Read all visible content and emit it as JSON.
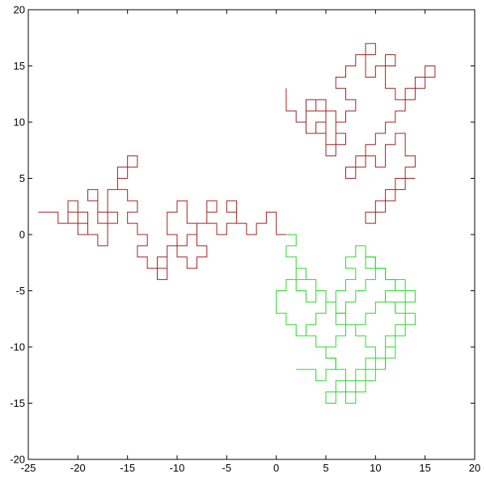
{
  "chart_data": {
    "type": "line",
    "title": "",
    "xlabel": "",
    "ylabel": "",
    "xlim": [
      -25,
      20
    ],
    "ylim": [
      -20,
      20
    ],
    "grid": false,
    "x_ticks": [
      -25,
      -20,
      -15,
      -10,
      -5,
      0,
      5,
      10,
      15,
      20
    ],
    "y_ticks": [
      -20,
      -15,
      -10,
      -5,
      0,
      5,
      10,
      15,
      20
    ],
    "x_tick_labels": [
      "-25",
      "-20",
      "-15",
      "-10",
      "-5",
      "0",
      "5",
      "10",
      "15",
      "20"
    ],
    "y_tick_labels": [
      "-20",
      "-15",
      "-10",
      "-5",
      "0",
      "5",
      "10",
      "15",
      "20"
    ],
    "series": [
      {
        "color": "#a31f1f",
        "x": [
          -24,
          -22,
          -22,
          -21,
          -21,
          -20,
          -20,
          -21,
          -21,
          -20,
          -20,
          -19,
          -19,
          -20,
          -20,
          -19,
          -19,
          -18,
          -18,
          -17,
          -17,
          -18,
          -18,
          -19,
          -19,
          -18,
          -18,
          -17,
          -17,
          -16,
          -16,
          -17,
          -17,
          -16,
          -16,
          -15,
          -15,
          -14,
          -14,
          -15,
          -15,
          -16,
          -16,
          -15,
          -15,
          -14,
          -14,
          -15,
          -15,
          -14,
          -14,
          -13,
          -13,
          -14,
          -14,
          -13,
          -13,
          -12,
          -12,
          -11,
          -11,
          -12,
          -12,
          -11,
          -11,
          -10,
          -10,
          -11,
          -11,
          -10,
          -10,
          -9,
          -9,
          -8,
          -8,
          -9,
          -9,
          -10,
          -10,
          -9,
          -9,
          -8,
          -8,
          -7,
          -7,
          -8,
          -8,
          -7,
          -7,
          -6,
          -6,
          -7,
          -7,
          -6,
          -6,
          -5,
          -5,
          -4,
          -4,
          -5,
          -5,
          -4,
          -4,
          -3,
          -3,
          -2,
          -2,
          -1,
          -1,
          0,
          0,
          1
        ],
        "y": [
          2,
          2,
          1,
          1,
          2,
          2,
          3,
          3,
          1,
          1,
          0,
          0,
          2,
          2,
          1,
          1,
          0,
          0,
          -1,
          -1,
          1,
          1,
          3,
          3,
          4,
          4,
          2,
          2,
          1,
          1,
          2,
          2,
          4,
          4,
          5,
          5,
          6,
          6,
          7,
          7,
          6,
          6,
          4,
          4,
          3,
          3,
          2,
          2,
          1,
          1,
          0,
          0,
          -1,
          -1,
          -2,
          -2,
          -3,
          -3,
          -2,
          -2,
          -4,
          -4,
          -3,
          -3,
          -1,
          -1,
          0,
          0,
          2,
          2,
          3,
          3,
          1,
          1,
          0,
          0,
          -1,
          -1,
          -2,
          -2,
          -3,
          -3,
          -2,
          -2,
          -1,
          -1,
          1,
          1,
          2,
          2,
          3,
          3,
          1,
          1,
          0,
          0,
          1,
          1,
          2,
          2,
          3,
          3,
          1,
          1,
          0,
          0,
          1,
          1,
          2,
          2,
          0,
          0
        ]
      },
      {
        "color": "#a31f1f",
        "x": [
          1,
          1,
          2,
          2,
          3,
          3,
          4,
          4,
          3,
          3,
          4,
          4,
          5,
          5,
          4,
          4,
          5,
          5,
          6,
          6,
          5,
          5,
          4,
          4,
          5,
          5,
          6,
          6,
          7,
          7,
          6,
          6,
          7,
          7,
          8,
          8,
          7,
          7,
          6,
          6,
          7,
          7,
          8,
          8,
          9,
          9,
          10,
          10,
          9,
          9,
          10,
          10,
          11,
          11,
          12,
          12,
          11,
          11,
          12,
          12,
          13,
          13,
          14,
          14,
          15,
          15,
          16,
          16,
          15,
          15,
          14,
          14,
          13,
          13,
          12,
          12,
          11,
          11,
          10,
          10,
          9,
          9,
          8,
          8,
          7,
          7,
          8,
          8,
          9,
          9,
          10,
          10,
          11,
          11,
          12,
          12,
          13,
          13,
          14,
          14,
          13,
          13,
          12,
          12,
          11,
          11,
          10,
          10,
          9,
          9,
          10,
          10,
          11,
          11,
          12,
          12,
          13,
          13,
          14
        ],
        "y": [
          13,
          11,
          11,
          10,
          10,
          11,
          11,
          12,
          12,
          9,
          9,
          10,
          10,
          11,
          11,
          12,
          12,
          11,
          11,
          8,
          8,
          9,
          9,
          10,
          10,
          7,
          7,
          8,
          8,
          9,
          9,
          10,
          10,
          11,
          11,
          12,
          12,
          13,
          13,
          14,
          14,
          15,
          15,
          16,
          16,
          17,
          17,
          16,
          16,
          14,
          14,
          15,
          15,
          16,
          16,
          15,
          15,
          13,
          13,
          12,
          12,
          13,
          13,
          14,
          14,
          15,
          15,
          14,
          14,
          13,
          13,
          12,
          12,
          11,
          11,
          10,
          10,
          9,
          9,
          8,
          8,
          7,
          7,
          6,
          6,
          5,
          5,
          6,
          6,
          7,
          7,
          6,
          6,
          8,
          8,
          9,
          9,
          7,
          7,
          6,
          6,
          5,
          5,
          4,
          4,
          3,
          3,
          2,
          2,
          1,
          1,
          2,
          2,
          3,
          3,
          4,
          4,
          5,
          5
        ]
      },
      {
        "color": "#22dd22",
        "x": [
          1,
          2,
          2,
          1,
          1,
          2,
          2,
          3,
          3,
          2,
          2,
          3,
          3,
          4,
          4,
          5,
          5,
          4,
          4,
          3,
          3,
          4,
          4,
          5,
          5,
          6,
          6,
          7,
          7,
          6,
          6,
          5,
          5,
          6,
          6,
          7,
          7,
          8,
          8,
          9,
          9,
          10,
          10,
          9,
          9,
          8,
          8,
          9,
          9,
          10,
          10,
          11,
          11,
          12,
          12,
          13,
          13,
          14,
          14,
          13,
          13,
          14,
          14,
          13,
          13,
          12,
          12,
          11,
          11,
          10,
          10,
          9,
          9,
          8,
          8,
          7,
          7,
          8,
          8,
          9,
          9,
          10,
          10,
          11,
          11,
          10,
          10,
          9,
          9,
          8,
          8,
          7,
          7,
          6,
          6,
          5,
          5,
          4,
          4,
          3,
          3,
          2,
          2,
          1,
          1,
          0,
          0,
          1,
          1,
          2,
          2,
          3,
          3,
          4,
          4,
          5,
          5,
          6,
          6,
          7,
          7,
          8,
          8,
          7,
          7,
          8,
          8,
          9,
          9,
          10,
          10,
          11,
          11,
          12,
          12,
          13,
          13,
          12,
          12
        ],
        "y": [
          0,
          0,
          -1,
          -1,
          -2,
          -2,
          -3,
          -3,
          -4,
          -4,
          -5,
          -5,
          -6,
          -6,
          -5,
          -5,
          -7,
          -7,
          -8,
          -8,
          -9,
          -9,
          -10,
          -10,
          -11,
          -11,
          -12,
          -12,
          -13,
          -13,
          -14,
          -14,
          -15,
          -15,
          -14,
          -14,
          -13,
          -13,
          -12,
          -12,
          -11,
          -11,
          -10,
          -10,
          -9,
          -9,
          -8,
          -8,
          -7,
          -7,
          -6,
          -6,
          -5,
          -5,
          -4,
          -4,
          -5,
          -5,
          -6,
          -6,
          -7,
          -7,
          -8,
          -8,
          -9,
          -9,
          -10,
          -10,
          -11,
          -11,
          -12,
          -12,
          -13,
          -13,
          -14,
          -14,
          -15,
          -15,
          -14,
          -14,
          -13,
          -13,
          -12,
          -12,
          -11,
          -11,
          -10,
          -10,
          -9,
          -9,
          -8,
          -8,
          -7,
          -7,
          -6,
          -6,
          -5,
          -5,
          -4,
          -4,
          -3,
          -3,
          -4,
          -4,
          -5,
          -5,
          -7,
          -7,
          -8,
          -8,
          -9,
          -9,
          -8,
          -8,
          -7,
          -7,
          -6,
          -6,
          -5,
          -5,
          -4,
          -4,
          -3,
          -3,
          -2,
          -2,
          -1,
          -1,
          -2,
          -2,
          -3,
          -3,
          -4,
          -4,
          -5,
          -5,
          -6,
          -6,
          -7
        ]
      },
      {
        "color": "#22dd22",
        "x": [
          2,
          4,
          4,
          5,
          5,
          6,
          6,
          5,
          5,
          6,
          6,
          7,
          7,
          6,
          6,
          7,
          7,
          8,
          8,
          9,
          9,
          10,
          10,
          9,
          9,
          10,
          10,
          11,
          11,
          12,
          12,
          11,
          11,
          12,
          12,
          13,
          13,
          12,
          12,
          11,
          11,
          12,
          12,
          11,
          11
        ],
        "y": [
          -12,
          -12,
          -13,
          -13,
          -12,
          -12,
          -11,
          -11,
          -10,
          -10,
          -9,
          -9,
          -8,
          -8,
          -7,
          -7,
          -6,
          -6,
          -5,
          -5,
          -4,
          -4,
          -3,
          -3,
          -2,
          -2,
          -3,
          -3,
          -4,
          -4,
          -5,
          -5,
          -6,
          -6,
          -7,
          -7,
          -8,
          -8,
          -9,
          -9,
          -10,
          -10,
          -11,
          -11,
          -12
        ]
      }
    ]
  }
}
